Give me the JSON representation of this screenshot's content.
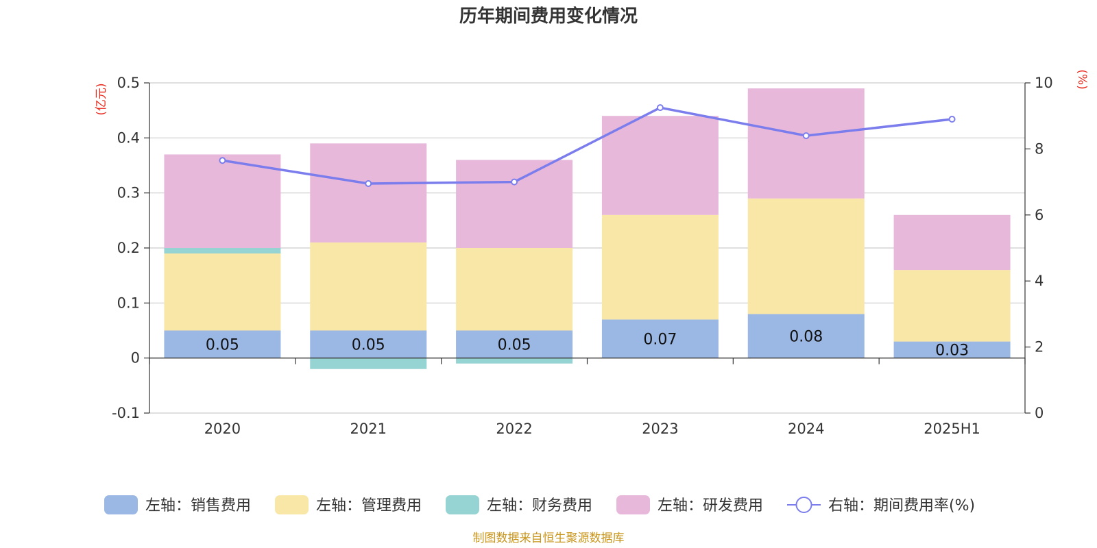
{
  "chart_data": {
    "type": "bar",
    "stacked": true,
    "title": "历年期间费用变化情况",
    "categories": [
      "2020",
      "2021",
      "2022",
      "2023",
      "2024",
      "2025H1"
    ],
    "left_axis": {
      "unit": "(亿元)",
      "ylim": [
        -0.1,
        0.5
      ],
      "ticks": [
        0.5,
        0.4,
        0.3,
        0.2,
        0.1,
        0,
        -0.1
      ],
      "tick_labels": [
        "0.5",
        "0.4",
        "0.3",
        "0.2",
        "0.1",
        "0",
        "-0.1"
      ]
    },
    "right_axis": {
      "unit": "(%)",
      "ylim": [
        0,
        10
      ],
      "ticks": [
        10,
        8,
        6,
        4,
        2,
        0
      ],
      "tick_labels": [
        "10",
        "8",
        "6",
        "4",
        "2",
        "0"
      ]
    },
    "series": [
      {
        "name": "左轴：销售费用",
        "type": "bar",
        "axis": "left",
        "color": "#9bb7e3",
        "values": [
          0.05,
          0.05,
          0.05,
          0.07,
          0.08,
          0.03
        ],
        "labels": [
          "0.05",
          "0.05",
          "0.05",
          "0.07",
          "0.08",
          "0.03"
        ]
      },
      {
        "name": "左轴：管理费用",
        "type": "bar",
        "axis": "left",
        "color": "#f9e7a7",
        "values": [
          0.14,
          0.16,
          0.15,
          0.19,
          0.21,
          0.13
        ]
      },
      {
        "name": "左轴：财务费用",
        "type": "bar",
        "axis": "left",
        "color": "#96d3d3",
        "values": [
          0.01,
          -0.02,
          -0.01,
          0,
          0,
          0
        ]
      },
      {
        "name": "左轴：研发费用",
        "type": "bar",
        "axis": "left",
        "color": "#e8b8da",
        "values": [
          0.17,
          0.18,
          0.16,
          0.18,
          0.2,
          0.1
        ]
      },
      {
        "name": "右轴：期间费用率(%)",
        "type": "line",
        "axis": "right",
        "color": "#7b7ded",
        "values": [
          7.65,
          6.95,
          7.0,
          9.25,
          8.4,
          8.9
        ]
      }
    ],
    "legend_position": "bottom",
    "grid": true
  },
  "source_note": "制图数据来自恒生聚源数据库"
}
